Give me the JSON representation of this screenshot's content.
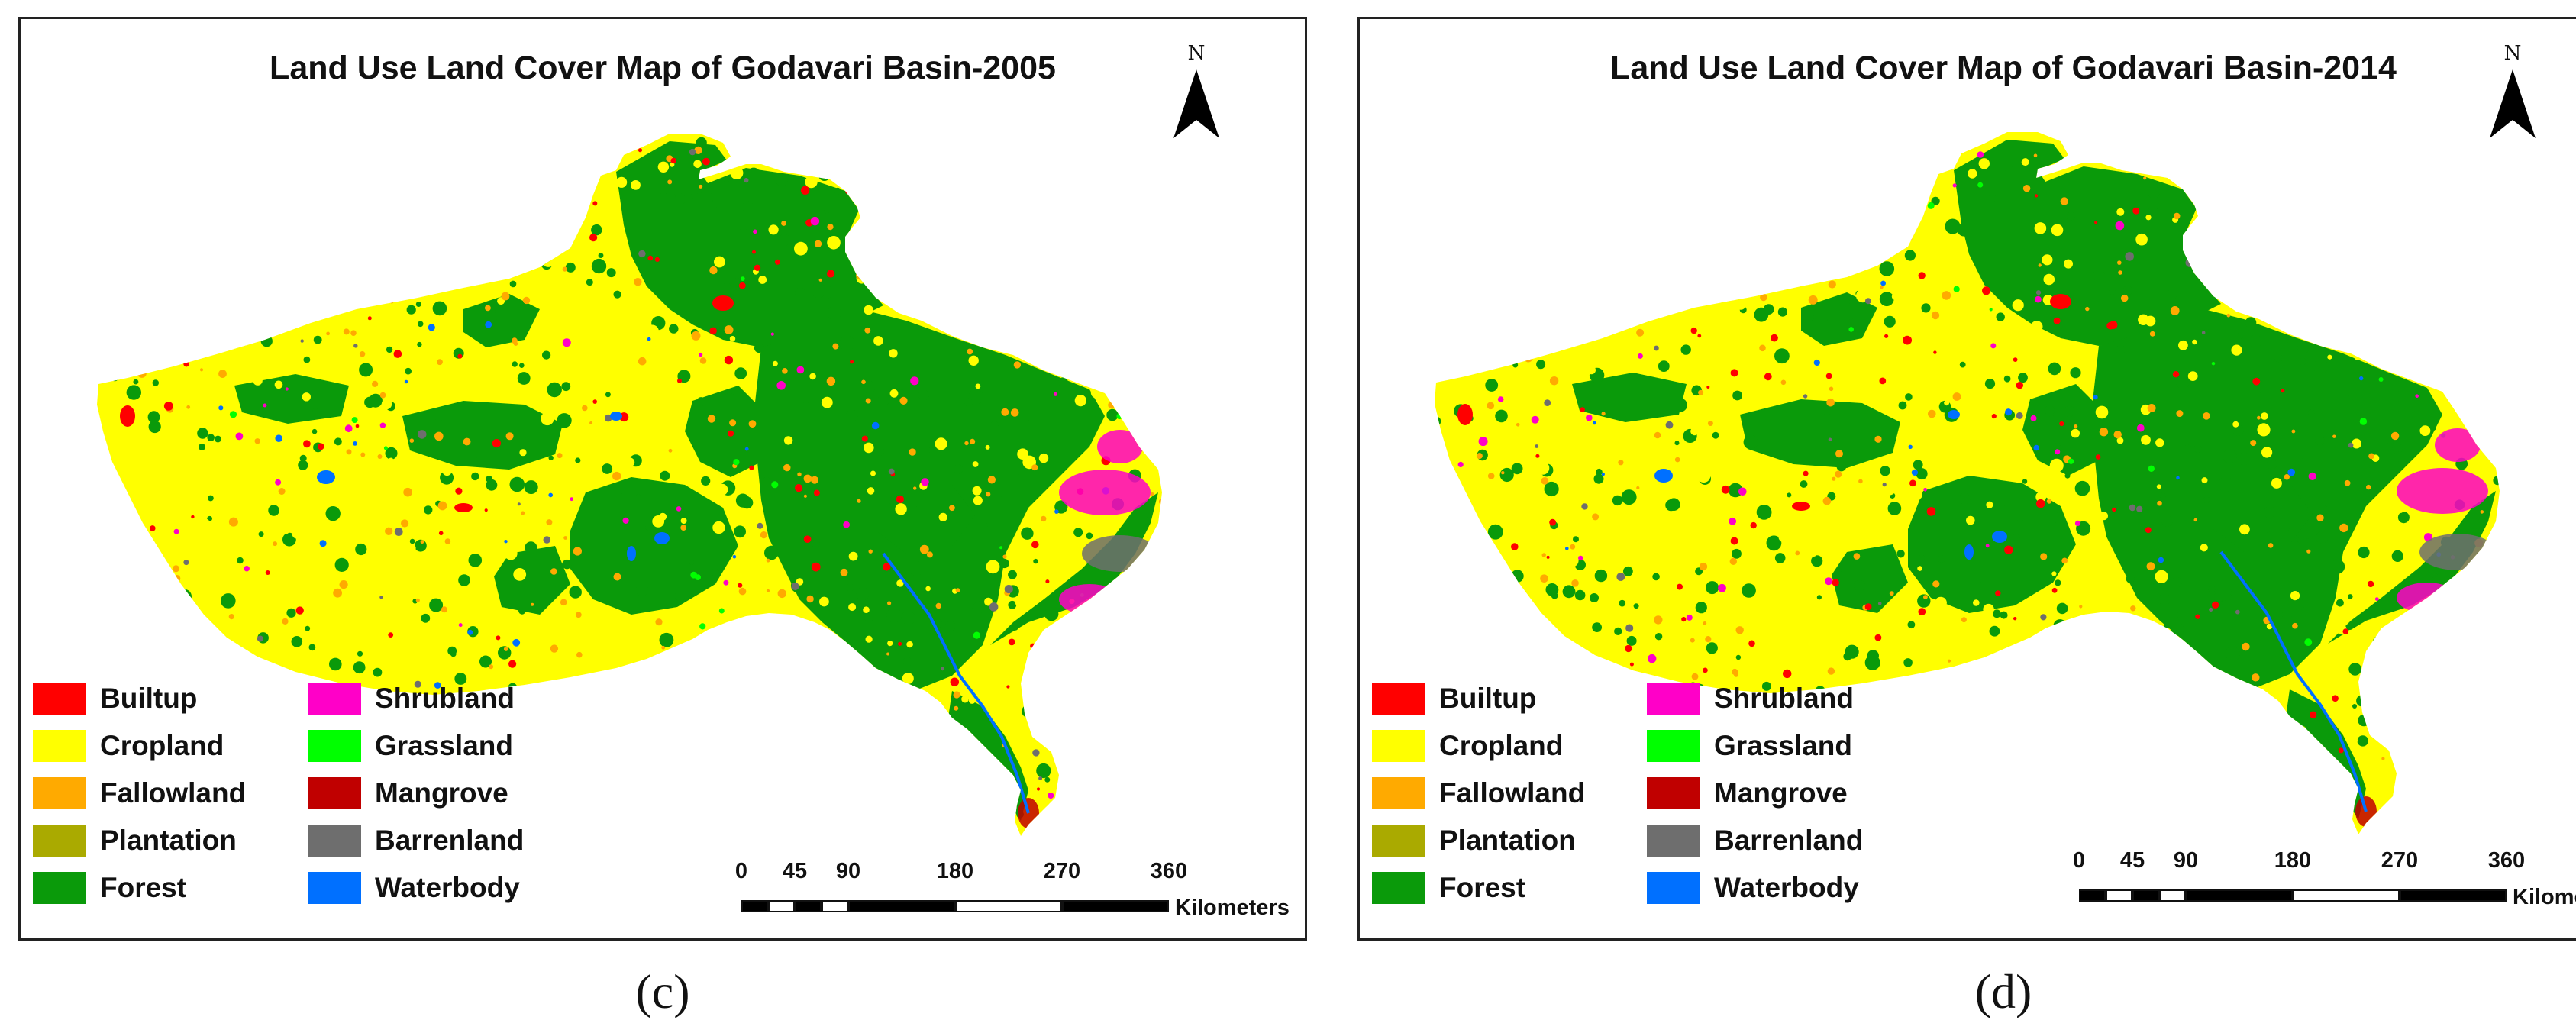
{
  "panels": [
    {
      "title": "Land Use Land Cover Map of Godavari Basin-2005",
      "caption": "(c)",
      "north_label": "N",
      "scale": {
        "ticks": [
          "0",
          "45",
          "90",
          "180",
          "270",
          "360"
        ],
        "units": "Kilometers"
      }
    },
    {
      "title": "Land Use Land Cover Map of Godavari Basin-2014",
      "caption": "(d)",
      "north_label": "N",
      "scale": {
        "ticks": [
          "0",
          "45",
          "90",
          "180",
          "270",
          "360"
        ],
        "units": "Kilometers"
      }
    }
  ],
  "legend": [
    {
      "label": "Builtup",
      "color": "#ff0000"
    },
    {
      "label": "Cropland",
      "color": "#ffff00"
    },
    {
      "label": "Fallowland",
      "color": "#ffaa00"
    },
    {
      "label": "Plantation",
      "color": "#aaaa00"
    },
    {
      "label": "Forest",
      "color": "#0a9a0a"
    },
    {
      "label": "Shrubland",
      "color": "#ff00c8"
    },
    {
      "label": "Grassland",
      "color": "#00ff00"
    },
    {
      "label": "Mangrove",
      "color": "#c00000"
    },
    {
      "label": "Barrenland",
      "color": "#6e6e6e"
    },
    {
      "label": "Waterbody",
      "color": "#0070ff"
    }
  ]
}
